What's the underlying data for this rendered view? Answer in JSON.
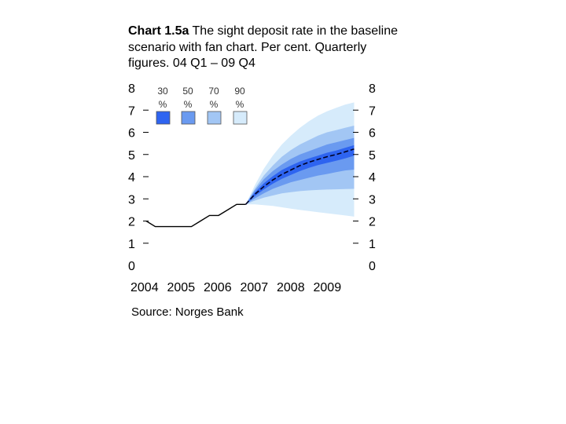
{
  "title": {
    "bold": "Chart 1.5a",
    "rest": " The sight deposit rate in the baseline scenario with fan chart. Per cent. Quarterly figures. 04 Q1 – 09 Q4"
  },
  "source": "Source: Norges Bank",
  "colors": {
    "band_30": "#2e64f0",
    "band_50": "#6a9af0",
    "band_70": "#a2c6f4",
    "band_90": "#d6ebfb",
    "line": "#000000"
  },
  "chart_data": {
    "type": "area",
    "title": "The sight deposit rate in the baseline scenario with fan chart",
    "ylabel": "Per cent",
    "ylim": [
      0,
      8
    ],
    "y_ticks": [
      "0",
      "1",
      "2",
      "3",
      "4",
      "5",
      "6",
      "7",
      "8"
    ],
    "x_ticks": [
      "2004",
      "2005",
      "2006",
      "2007",
      "2008",
      "2009"
    ],
    "legend": [
      {
        "label": "30 %",
        "color": "#2e64f0"
      },
      {
        "label": "50 %",
        "color": "#6a9af0"
      },
      {
        "label": "70 %",
        "color": "#a2c6f4"
      },
      {
        "label": "90 %",
        "color": "#d6ebfb"
      }
    ],
    "historical": {
      "x": [
        2004.0,
        2004.25,
        2004.5,
        2004.75,
        2005.0,
        2005.25,
        2005.5,
        2005.75,
        2006.0,
        2006.25,
        2006.5,
        2006.75
      ],
      "y": [
        2.0,
        1.75,
        1.75,
        1.75,
        1.75,
        1.75,
        2.0,
        2.25,
        2.25,
        2.5,
        2.75,
        2.75
      ]
    },
    "baseline": {
      "x": [
        2006.75,
        2007.0,
        2007.25,
        2007.5,
        2007.75,
        2008.0,
        2008.25,
        2008.5,
        2008.75,
        2009.0,
        2009.25,
        2009.5,
        2009.75
      ],
      "y": [
        2.75,
        3.2,
        3.55,
        3.85,
        4.1,
        4.3,
        4.5,
        4.65,
        4.78,
        4.9,
        5.0,
        5.12,
        5.25
      ]
    },
    "bands": {
      "x": [
        2006.75,
        2007.0,
        2007.25,
        2007.5,
        2007.75,
        2008.0,
        2008.25,
        2008.5,
        2008.75,
        2009.0,
        2009.25,
        2009.5,
        2009.75
      ],
      "p90_upper": [
        2.75,
        3.6,
        4.35,
        4.95,
        5.45,
        5.85,
        6.2,
        6.5,
        6.75,
        6.95,
        7.1,
        7.25,
        7.35
      ],
      "p70_upper": [
        2.75,
        3.45,
        4.05,
        4.5,
        4.9,
        5.2,
        5.45,
        5.65,
        5.85,
        6.0,
        6.1,
        6.2,
        6.3
      ],
      "p50_upper": [
        2.75,
        3.38,
        3.88,
        4.25,
        4.55,
        4.8,
        5.0,
        5.15,
        5.3,
        5.45,
        5.55,
        5.65,
        5.75
      ],
      "p30_upper": [
        2.75,
        3.28,
        3.7,
        4.02,
        4.3,
        4.5,
        4.68,
        4.82,
        4.95,
        5.08,
        5.18,
        5.3,
        5.42
      ],
      "p30_lower": [
        2.75,
        3.12,
        3.42,
        3.68,
        3.9,
        4.08,
        4.25,
        4.4,
        4.52,
        4.62,
        4.72,
        4.82,
        4.95
      ],
      "p50_lower": [
        2.75,
        3.02,
        3.25,
        3.45,
        3.6,
        3.75,
        3.85,
        3.95,
        4.05,
        4.12,
        4.2,
        4.28,
        4.32
      ],
      "p70_lower": [
        2.75,
        2.92,
        3.05,
        3.15,
        3.25,
        3.3,
        3.35,
        3.38,
        3.4,
        3.42,
        3.43,
        3.44,
        3.45
      ],
      "p90_lower": [
        2.75,
        2.75,
        2.72,
        2.68,
        2.62,
        2.56,
        2.5,
        2.45,
        2.4,
        2.35,
        2.3,
        2.25,
        2.2
      ]
    }
  }
}
